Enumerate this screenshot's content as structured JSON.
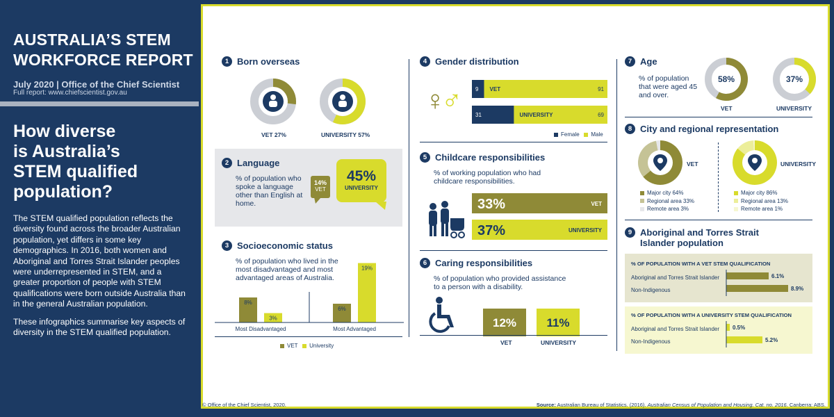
{
  "header": {
    "title_line1": "AUSTRALIA’S STEM",
    "title_line2": "WORKFORCE REPORT",
    "date": "July 2020 | Office of the Chief Scientist",
    "report": "Full report: www.chiefscientist.gov.au"
  },
  "question": {
    "l1": "How diverse",
    "l2": "is Australia’s",
    "l3": "STEM qualified",
    "l4": "population?"
  },
  "intro": {
    "p1": "The STEM qualified population reflects the diversity found across the broader Australian population, yet differs in some key demographics. In 2016, both women and Aboriginal and Torres Strait Islander peoples were underrepresented in STEM, and a greater proportion of people with STEM qualifications were born outside Australia than in the general Australian population.",
    "p2": "These infographics summarise key aspects of diversity in the STEM qualified population."
  },
  "footer": {
    "copyright": "© Office of the Chief Scientist, 2020.",
    "source_label": "Source:",
    "source_text": " Australian Bureau of Statistics. (2016). ",
    "source_title": "Australian Census of Population and Housing. Cat. no. 2016.",
    "source_end": " Canberra: ABS."
  },
  "colors": {
    "navy": "#1c3a63",
    "olive": "#8f8a37",
    "yellow": "#d8db2c",
    "grey": "#cbced4",
    "light_grey": "#e6e7ea"
  },
  "s1": {
    "num": "1",
    "title": "Born overseas",
    "vet_label": "VET 27%",
    "uni_label": "UNIVERSITY 57%"
  },
  "s2": {
    "num": "2",
    "title": "Language",
    "desc": "% of population who spoke a language other than English at home.",
    "vet_pct": "14%",
    "vet_label": "VET",
    "uni_pct": "45%",
    "uni_label": "UNIVERSITY"
  },
  "s3": {
    "num": "3",
    "title": "Socioeconomic status",
    "desc": "% of population who lived in the most disadvantaged and most advantaged areas of Australia.",
    "legend_vet": "VET",
    "legend_uni": "University"
  },
  "s4": {
    "num": "4",
    "title": "Gender distribution",
    "vet_female": "9",
    "vet_label": "VET",
    "vet_male": "91",
    "uni_female": "31",
    "uni_label": "UNIVERSITY",
    "uni_male": "69",
    "legend_female": "Female",
    "legend_male": "Male"
  },
  "s5": {
    "num": "5",
    "title": "Childcare responsibilities",
    "desc": "% of working population who had childcare responsibilities.",
    "vet_pct": "33%",
    "vet_label": "VET",
    "uni_pct": "37%",
    "uni_label": "UNIVERSITY"
  },
  "s6": {
    "num": "6",
    "title": "Caring responsibilities",
    "desc": "% of population who provided assistance to a person with a disability.",
    "vet_pct": "12%",
    "vet_label": "VET",
    "uni_pct": "11%",
    "uni_label": "UNIVERSITY"
  },
  "s7": {
    "num": "7",
    "title": "Age",
    "desc": "% of population that were aged 45 and over.",
    "vet_pct": "58%",
    "vet_label": "VET",
    "uni_pct": "37%",
    "uni_label": "UNIVERSITY"
  },
  "s8": {
    "num": "8",
    "title": "City and regional representation",
    "vet_label": "VET",
    "uni_label": "UNIVERSITY",
    "vet_items": [
      "Major city 64%",
      "Regional area 33%",
      "Remote area 3%"
    ],
    "uni_items": [
      "Major city 86%",
      "Regional area 13%",
      "Remote area 1%"
    ]
  },
  "s9": {
    "num": "9",
    "title_l1": "Aboriginal and Torres Strait",
    "title_l2": "Islander population",
    "vet_head": "% OF POPULATION WITH A VET STEM QUALIFICATION",
    "uni_head": "% OF POPULATION WITH A UNIVERSITY STEM QUALIFICATION",
    "row1": "Aboriginal and Torres Strait Islander",
    "row2": "Non-Indigenous",
    "vet_v1": "6.1%",
    "vet_v2": "8.9%",
    "uni_v1": "0.5%",
    "uni_v2": "5.2%"
  },
  "chart_data": [
    {
      "type": "pie",
      "title": "Born overseas",
      "categories": [
        "VET",
        "UNIVERSITY"
      ],
      "values": [
        27,
        57
      ]
    },
    {
      "type": "bar",
      "title": "Language",
      "categories": [
        "VET",
        "UNIVERSITY"
      ],
      "values": [
        14,
        45
      ]
    },
    {
      "type": "bar",
      "title": "Socioeconomic status",
      "categories": [
        "Most Disadvantaged",
        "Most Advantaged"
      ],
      "series": [
        {
          "name": "VET",
          "values": [
            8,
            6
          ]
        },
        {
          "name": "University",
          "values": [
            3,
            19
          ]
        }
      ]
    },
    {
      "type": "bar",
      "title": "Gender distribution",
      "categories": [
        "VET",
        "UNIVERSITY"
      ],
      "series": [
        {
          "name": "Female",
          "values": [
            9,
            31
          ]
        },
        {
          "name": "Male",
          "values": [
            91,
            69
          ]
        }
      ]
    },
    {
      "type": "bar",
      "title": "Childcare responsibilities",
      "categories": [
        "VET",
        "UNIVERSITY"
      ],
      "values": [
        33,
        37
      ]
    },
    {
      "type": "bar",
      "title": "Caring responsibilities",
      "categories": [
        "VET",
        "UNIVERSITY"
      ],
      "values": [
        12,
        11
      ]
    },
    {
      "type": "pie",
      "title": "Age",
      "categories": [
        "VET",
        "UNIVERSITY"
      ],
      "values": [
        58,
        37
      ]
    },
    {
      "type": "pie",
      "title": "City and regional representation",
      "series": [
        {
          "name": "VET",
          "categories": [
            "Major city",
            "Regional area",
            "Remote area"
          ],
          "values": [
            64,
            33,
            3
          ]
        },
        {
          "name": "UNIVERSITY",
          "categories": [
            "Major city",
            "Regional area",
            "Remote area"
          ],
          "values": [
            86,
            13,
            1
          ]
        }
      ]
    },
    {
      "type": "bar",
      "title": "% OF POPULATION WITH A VET STEM QUALIFICATION",
      "categories": [
        "Aboriginal and Torres Strait Islander",
        "Non-Indigenous"
      ],
      "values": [
        6.1,
        8.9
      ]
    },
    {
      "type": "bar",
      "title": "% OF POPULATION WITH A UNIVERSITY STEM QUALIFICATION",
      "categories": [
        "Aboriginal and Torres Strait Islander",
        "Non-Indigenous"
      ],
      "values": [
        0.5,
        5.2
      ]
    }
  ]
}
